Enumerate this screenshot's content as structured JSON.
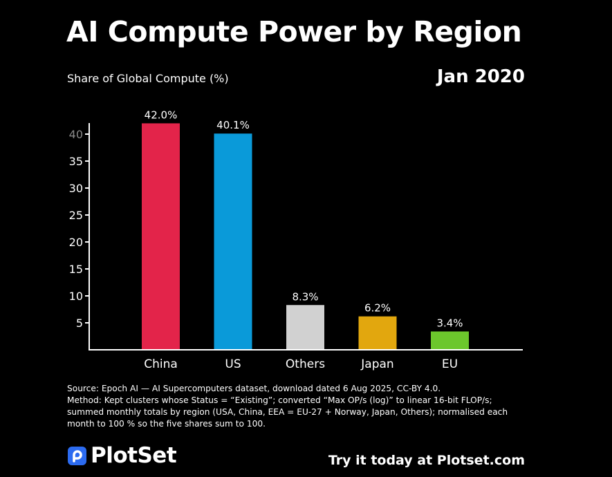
{
  "header": {
    "title": "AI Compute Power by Region",
    "subtitle": "Share of Global Compute (%)",
    "date": "Jan 2020"
  },
  "chart_data": {
    "type": "bar",
    "title": "AI Compute Power by Region",
    "ylabel": "Share of Global Compute (%)",
    "xlabel": "",
    "categories": [
      "China",
      "US",
      "Others",
      "Japan",
      "EU"
    ],
    "values": [
      42.0,
      40.1,
      8.3,
      6.2,
      3.4
    ],
    "data_labels": [
      "42.0%",
      "40.1%",
      "8.3%",
      "6.2%",
      "3.4%"
    ],
    "colors": [
      "#e3244a",
      "#0a9ad9",
      "#d1d1d1",
      "#e2a70e",
      "#6cc72c"
    ],
    "yticks": [
      5,
      10,
      15,
      20,
      25,
      30,
      35,
      40
    ],
    "ylim": [
      0,
      42
    ],
    "grid": false,
    "legend": "none"
  },
  "footnote": {
    "lines": [
      "Source: Epoch AI — AI Supercomputers dataset, download dated 6 Aug 2025, CC-BY 4.0.",
      "Method: Kept clusters whose Status = “Existing”; converted “Max OP/s (log)” to linear 16-bit FLOP/s;",
      "summed monthly totals by region (USA, China, EEA = EU-27 + Norway, Japan, Others); normalised each",
      "month to 100 % so the five shares sum to 100."
    ]
  },
  "footer": {
    "brand": "PlotSet",
    "brand_icon": "plotset-logo-icon",
    "brand_color": "#2c6bf0",
    "cta": "Try it today at Plotset.com"
  }
}
